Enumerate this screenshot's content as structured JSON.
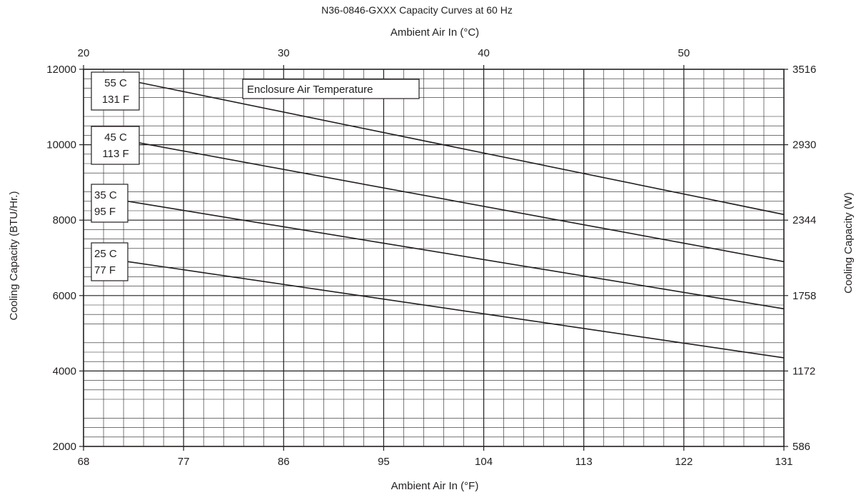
{
  "chart_data": {
    "type": "line",
    "title": "N36-0846-GXXX Capacity Curves at 60 Hz",
    "xlabel": "Ambient Air In (°F)",
    "ylabel": "Cooling Capacity (BTU/Hr.)",
    "x2label": "Ambient Air In (°C)",
    "y2label": "Cooling Capacity (W)",
    "xlim": [
      68,
      131
    ],
    "ylim": [
      2000,
      12000
    ],
    "x_ticks": [
      "68",
      "77",
      "86",
      "95",
      "104",
      "113",
      "122",
      "131"
    ],
    "y_ticks": [
      "2000",
      "4000",
      "6000",
      "8000",
      "10000",
      "12000"
    ],
    "x2_ticks": [
      "20",
      "30",
      "40",
      "50"
    ],
    "y2_ticks": [
      "586",
      "1172",
      "1758",
      "2344",
      "2930",
      "3516"
    ],
    "grid": true,
    "legend_title": "Enclosure Air Temperature",
    "series": [
      {
        "name": "55 C\n131 F",
        "label_lines": [
          "55 C",
          "131 F"
        ],
        "x": [
          73,
          131
        ],
        "y": [
          11650,
          8150
        ]
      },
      {
        "name": "45 C\n113 F",
        "label_lines": [
          "45 C",
          "113 F"
        ],
        "x": [
          73,
          131
        ],
        "y": [
          10050,
          6900
        ]
      },
      {
        "name": "35 C\n95 F",
        "label_lines": [
          "35 C",
          "95 F"
        ],
        "x": [
          72,
          131
        ],
        "y": [
          8500,
          5650
        ]
      },
      {
        "name": "25 C\n77 F",
        "label_lines": [
          "25 C",
          "77 F"
        ],
        "x": [
          72,
          131
        ],
        "y": [
          6900,
          4350
        ]
      }
    ],
    "colors": {
      "line": "#231f20",
      "grid": "#231f20",
      "text": "#231f20"
    }
  }
}
